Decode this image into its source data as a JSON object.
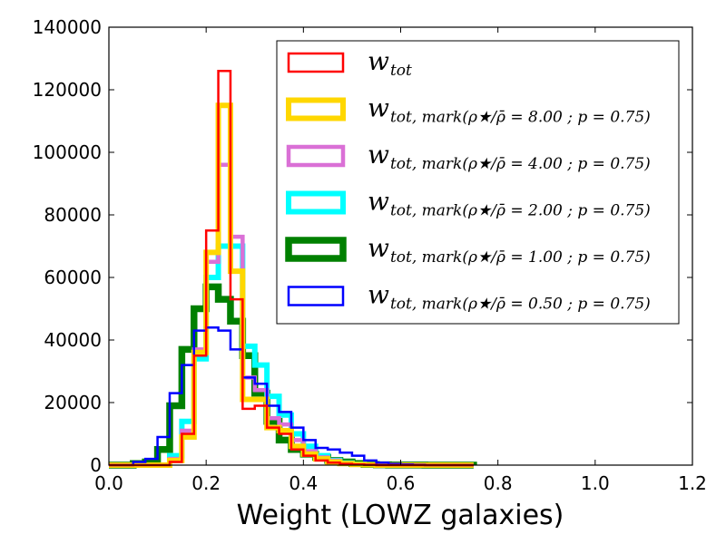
{
  "chart_data": {
    "type": "histogram",
    "xlabel": "Weight (LOWZ galaxies)",
    "ylabel": "",
    "xlim": [
      0.0,
      1.2
    ],
    "ylim": [
      0,
      140000
    ],
    "xticks": [
      "0.0",
      "0.2",
      "0.4",
      "0.6",
      "0.8",
      "1.0",
      "1.2"
    ],
    "yticks": [
      "0",
      "20000",
      "40000",
      "60000",
      "80000",
      "100000",
      "120000",
      "140000"
    ],
    "legend_position": "top-right",
    "bin_edges": [
      0.0,
      0.025,
      0.05,
      0.075,
      0.1,
      0.125,
      0.15,
      0.175,
      0.2,
      0.225,
      0.25,
      0.275,
      0.3,
      0.325,
      0.35,
      0.375,
      0.4,
      0.425,
      0.45,
      0.475,
      0.5,
      0.525,
      0.55,
      0.575,
      0.6,
      0.625,
      0.65,
      0.675,
      0.7,
      0.725,
      0.75
    ],
    "series": [
      {
        "name": "w_tot",
        "legend_main": "w",
        "legend_sub": "tot",
        "color": "#ff0000",
        "stroke": 2.5,
        "values": [
          0,
          0,
          0,
          0,
          0,
          1000,
          10000,
          35000,
          75000,
          126000,
          53000,
          18000,
          19000,
          12000,
          10000,
          5000,
          3000,
          1500,
          800,
          400,
          200,
          100,
          0,
          0,
          0,
          0,
          0,
          0,
          0,
          0
        ]
      },
      {
        "name": "w_tot,mark(rho*/rhobar=8.00 ; p=0.75)",
        "legend_main": "w",
        "legend_sub": "tot, mark(ρ★/ρ̄ = 8.00 ;  p = 0.75)",
        "color": "#ffd700",
        "stroke": 6,
        "values": [
          0,
          0,
          0,
          0,
          0,
          1500,
          9000,
          36000,
          68000,
          115000,
          62000,
          21000,
          21000,
          12000,
          11000,
          6000,
          3500,
          2000,
          1000,
          500,
          200,
          100,
          0,
          0,
          0,
          0,
          0,
          0,
          0,
          0
        ]
      },
      {
        "name": "w_tot,mark(rho*/rhobar=4.00 ; p=0.75)",
        "legend_main": "w",
        "legend_sub": "tot, mark(ρ★/ρ̄ = 4.00 ;  p = 0.75)",
        "color": "#da70d6",
        "stroke": 4.5,
        "values": [
          0,
          0,
          0,
          0,
          0,
          2000,
          11000,
          37000,
          65000,
          96000,
          73000,
          28000,
          24000,
          15000,
          13000,
          8000,
          4500,
          2500,
          1500,
          700,
          300,
          100,
          0,
          0,
          0,
          0,
          0,
          0,
          0,
          0
        ]
      },
      {
        "name": "w_tot,mark(rho*/rhobar=2.00 ; p=0.75)",
        "legend_main": "w",
        "legend_sub": "tot, mark(ρ★/ρ̄ = 2.00 ;  p = 0.75)",
        "color": "#00ffff",
        "stroke": 6,
        "values": [
          0,
          0,
          0,
          0,
          0,
          3000,
          14000,
          34000,
          60000,
          70000,
          70000,
          38000,
          32000,
          22000,
          16000,
          10000,
          6000,
          3000,
          1500,
          700,
          300,
          100,
          0,
          0,
          0,
          0,
          0,
          0,
          0,
          0
        ]
      },
      {
        "name": "w_tot,mark(rho*/rhobar=1.00 ; p=0.75)",
        "legend_main": "w",
        "legend_sub": "tot, mark(ρ★/ρ̄ = 1.00 ;  p = 0.75)",
        "color": "#008000",
        "stroke": 7.5,
        "values": [
          0,
          0,
          500,
          1000,
          5000,
          19000,
          37000,
          50000,
          57000,
          53000,
          46000,
          35000,
          23000,
          14000,
          8000,
          5000,
          3500,
          2500,
          1500,
          1000,
          500,
          200,
          100,
          50,
          30,
          20,
          10,
          5,
          2,
          1
        ]
      },
      {
        "name": "w_tot,mark(rho*/rhobar=0.50 ; p=0.75)",
        "legend_main": "w",
        "legend_sub": "tot, mark(ρ★/ρ̄ = 0.50 ;  p = 0.75)",
        "color": "#0000ff",
        "stroke": 2.5,
        "values": [
          0,
          0,
          1000,
          2000,
          9000,
          23000,
          32000,
          43000,
          44000,
          43000,
          37000,
          28000,
          26000,
          19000,
          17000,
          12000,
          8000,
          5500,
          5000,
          4000,
          3000,
          1500,
          800,
          400,
          200,
          100,
          0,
          0,
          0,
          0
        ]
      }
    ]
  }
}
